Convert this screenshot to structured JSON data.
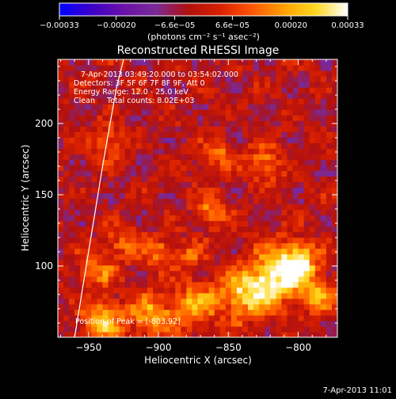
{
  "chart_data": {
    "type": "heatmap",
    "title": "Reconstructed RHESSI Image",
    "xlabel": "Heliocentric X (arcsec)",
    "ylabel": "Heliocentric Y (arcsec)",
    "xlim": [
      -972,
      -772
    ],
    "ylim": [
      50,
      245
    ],
    "x_ticks": [
      -950,
      -900,
      -850,
      -800
    ],
    "x_tick_labels": [
      "−950",
      "−900",
      "−850",
      "−800"
    ],
    "y_ticks": [
      100,
      150,
      200
    ],
    "y_tick_labels": [
      "100",
      "150",
      "200"
    ],
    "colorbar": {
      "range": [
        -0.00033,
        0.00033
      ],
      "ticks": [
        -0.00033,
        -0.0002,
        -6.6e-05,
        6.6e-05,
        0.0002,
        0.00033
      ],
      "tick_labels": [
        "−0.00033",
        "−0.00020",
        "−6.6e−05",
        "6.6e−05",
        "0.00020",
        "0.00033"
      ],
      "unit_label": "(photons cm⁻² s⁻¹ asec⁻²)",
      "colors": [
        "#0000ff",
        "#3c00c8",
        "#6a10a8",
        "#7a2a98",
        "#b01010",
        "#d82000",
        "#ff5500",
        "#ffa000",
        "#ffd820",
        "#ffffff"
      ]
    },
    "annotations": [
      "7-Apr-2013 03:49:20.000 to 03:54:02.000",
      "Detectors: 3F 5F 6F 7F 8F 9F, Att 0",
      "Energy Range: 12.0 - 25.0 keV",
      "Clean     Total counts: 8.02E+03"
    ],
    "peak_label": "Position of Peak = [-803,92]",
    "peak": [
      -803,
      92
    ],
    "limb_curve": {
      "x": [
        -960,
        -955,
        -950,
        -945,
        -940,
        -935,
        -930,
        -925
      ],
      "y": [
        50,
        80,
        110,
        140,
        170,
        198,
        225,
        245
      ]
    },
    "bright_sources": [
      {
        "x": -816,
        "y": 92,
        "sigma": 14,
        "value": 0.00031
      },
      {
        "x": -800,
        "y": 102,
        "sigma": 10,
        "value": 0.0003
      },
      {
        "x": -839,
        "y": 80,
        "sigma": 12,
        "value": 0.00026
      },
      {
        "x": -873,
        "y": 73,
        "sigma": 11,
        "value": 0.00022
      },
      {
        "x": -905,
        "y": 66,
        "sigma": 11,
        "value": 0.00022
      },
      {
        "x": -940,
        "y": 63,
        "sigma": 10,
        "value": 0.00025
      },
      {
        "x": -945,
        "y": 97,
        "sigma": 9,
        "value": 0.00017
      },
      {
        "x": -925,
        "y": 116,
        "sigma": 8,
        "value": 0.00015
      },
      {
        "x": -901,
        "y": 110,
        "sigma": 8,
        "value": 0.00016
      },
      {
        "x": -863,
        "y": 139,
        "sigma": 9,
        "value": 0.00016
      },
      {
        "x": -857,
        "y": 178,
        "sigma": 8,
        "value": 0.00015
      },
      {
        "x": -824,
        "y": 172,
        "sigma": 9,
        "value": 0.00017
      },
      {
        "x": -935,
        "y": 187,
        "sigma": 8,
        "value": 0.00017
      },
      {
        "x": -878,
        "y": 107,
        "sigma": 7,
        "value": 0.00013
      },
      {
        "x": -784,
        "y": 80,
        "sigma": 8,
        "value": 0.00022
      }
    ],
    "grid": false
  },
  "footer": {
    "timestamp": "7-Apr-2013 11:01"
  }
}
